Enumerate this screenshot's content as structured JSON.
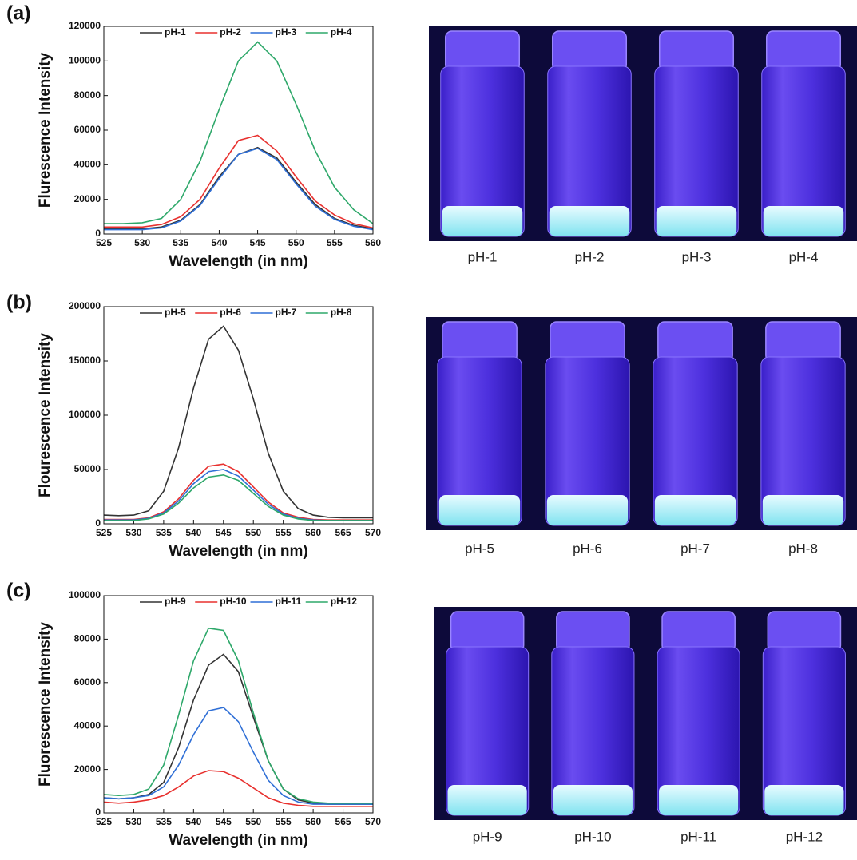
{
  "chart_data": [
    {
      "type": "line",
      "panel": "(a)",
      "xlabel": "Wavelength  (in nm)",
      "ylabel": "Flurescence Intensity",
      "x": [
        525,
        527.5,
        530,
        532.5,
        535,
        537.5,
        540,
        542.5,
        545,
        547.5,
        550,
        552.5,
        555,
        557.5,
        560
      ],
      "xlim": [
        525,
        560
      ],
      "xticks": [
        525,
        530,
        535,
        540,
        545,
        550,
        555,
        560
      ],
      "ylim": [
        0,
        120000
      ],
      "yticks": [
        0,
        20000,
        40000,
        60000,
        80000,
        100000,
        120000
      ],
      "legend": "top",
      "series": [
        {
          "name": "pH-1",
          "color": "#333333",
          "values": [
            3000,
            3000,
            3000,
            4000,
            8000,
            17000,
            33000,
            46000,
            50000,
            44000,
            30000,
            17000,
            9000,
            5000,
            3000
          ]
        },
        {
          "name": "pH-2",
          "color": "#e8312f",
          "values": [
            4000,
            4000,
            4000,
            5500,
            10000,
            20000,
            38000,
            54000,
            57000,
            48000,
            33000,
            19000,
            11000,
            6000,
            3500
          ]
        },
        {
          "name": "pH-3",
          "color": "#2f6fd6",
          "values": [
            2500,
            2500,
            2500,
            3500,
            7500,
            16500,
            32000,
            46000,
            49500,
            43000,
            29000,
            16000,
            8500,
            4500,
            2500
          ]
        },
        {
          "name": "pH-4",
          "color": "#2ea86a",
          "values": [
            6000,
            6000,
            6500,
            9000,
            20000,
            42000,
            72000,
            100000,
            111000,
            100000,
            75000,
            48000,
            27000,
            14000,
            6000
          ]
        }
      ]
    },
    {
      "type": "line",
      "panel": "(b)",
      "xlabel": "Wavelength  (in nm)",
      "ylabel": "Flourescence Intensity",
      "x": [
        525,
        527.5,
        530,
        532.5,
        535,
        537.5,
        540,
        542.5,
        545,
        547.5,
        550,
        552.5,
        555,
        557.5,
        560,
        562.5,
        565,
        567.5,
        570
      ],
      "xlim": [
        525,
        570
      ],
      "xticks": [
        525,
        530,
        535,
        540,
        545,
        550,
        555,
        560,
        565,
        570
      ],
      "ylim": [
        0,
        200000
      ],
      "yticks": [
        0,
        50000,
        100000,
        150000,
        200000
      ],
      "legend": "top",
      "series": [
        {
          "name": "pH-5",
          "color": "#333333",
          "values": [
            8000,
            7500,
            8000,
            12000,
            30000,
            70000,
            125000,
            170000,
            182000,
            160000,
            115000,
            65000,
            30000,
            14000,
            8000,
            6000,
            5500,
            5500,
            5500
          ]
        },
        {
          "name": "pH-6",
          "color": "#e8312f",
          "values": [
            4000,
            4000,
            4000,
            5500,
            11000,
            23000,
            40000,
            53000,
            55000,
            48000,
            34000,
            20000,
            10000,
            6000,
            4000,
            3500,
            3500,
            3500,
            3500
          ]
        },
        {
          "name": "pH-7",
          "color": "#2f6fd6",
          "values": [
            3500,
            3500,
            3500,
            5000,
            10000,
            21000,
            37000,
            48000,
            50000,
            44000,
            31000,
            18000,
            9000,
            5000,
            3500,
            3000,
            3000,
            3000,
            3000
          ]
        },
        {
          "name": "pH-8",
          "color": "#2ea86a",
          "values": [
            3000,
            3000,
            3000,
            4500,
            9000,
            19000,
            33000,
            43000,
            45000,
            40000,
            28000,
            16000,
            8000,
            4500,
            3000,
            3000,
            3000,
            3000,
            3000
          ]
        }
      ]
    },
    {
      "type": "line",
      "panel": "(c)",
      "xlabel": "Wavelength  (in nm)",
      "ylabel": "Fluorescence Intensity",
      "x": [
        525,
        527.5,
        530,
        532.5,
        535,
        537.5,
        540,
        542.5,
        545,
        547.5,
        550,
        552.5,
        555,
        557.5,
        560,
        562.5,
        565,
        567.5,
        570
      ],
      "xlim": [
        525,
        570
      ],
      "xticks": [
        525,
        530,
        535,
        540,
        545,
        550,
        555,
        560,
        565,
        570
      ],
      "ylim": [
        0,
        100000
      ],
      "yticks": [
        0,
        20000,
        40000,
        60000,
        80000,
        100000
      ],
      "legend": "top",
      "series": [
        {
          "name": "pH-9",
          "color": "#333333",
          "values": [
            7000,
            6500,
            7000,
            8500,
            14000,
            30000,
            52000,
            68000,
            73000,
            65000,
            44000,
            24000,
            11000,
            6000,
            4500,
            4000,
            4000,
            4000,
            4000
          ]
        },
        {
          "name": "pH-10",
          "color": "#e8312f",
          "values": [
            5000,
            4500,
            5000,
            6000,
            8000,
            12000,
            17000,
            19500,
            19000,
            16000,
            11500,
            7000,
            4500,
            3500,
            3000,
            3000,
            3000,
            3000,
            3000
          ]
        },
        {
          "name": "pH-11",
          "color": "#2f6fd6",
          "values": [
            7000,
            6500,
            7000,
            8000,
            12000,
            22000,
            36000,
            47000,
            48500,
            42000,
            28000,
            15000,
            8000,
            5000,
            4000,
            4000,
            4000,
            4000,
            4000
          ]
        },
        {
          "name": "pH-12",
          "color": "#2ea86a",
          "values": [
            8500,
            8000,
            8500,
            11000,
            22000,
            45000,
            70000,
            85000,
            84000,
            70000,
            46000,
            24000,
            11000,
            6500,
            5000,
            4500,
            4500,
            4500,
            4500
          ]
        }
      ]
    }
  ],
  "photos": [
    {
      "labels": [
        "pH-1",
        "pH-2",
        "pH-3",
        "pH-4"
      ]
    },
    {
      "labels": [
        "pH-5",
        "pH-6",
        "pH-7",
        "pH-8"
      ]
    },
    {
      "labels": [
        "pH-9",
        "pH-10",
        "pH-11",
        "pH-12"
      ]
    }
  ]
}
